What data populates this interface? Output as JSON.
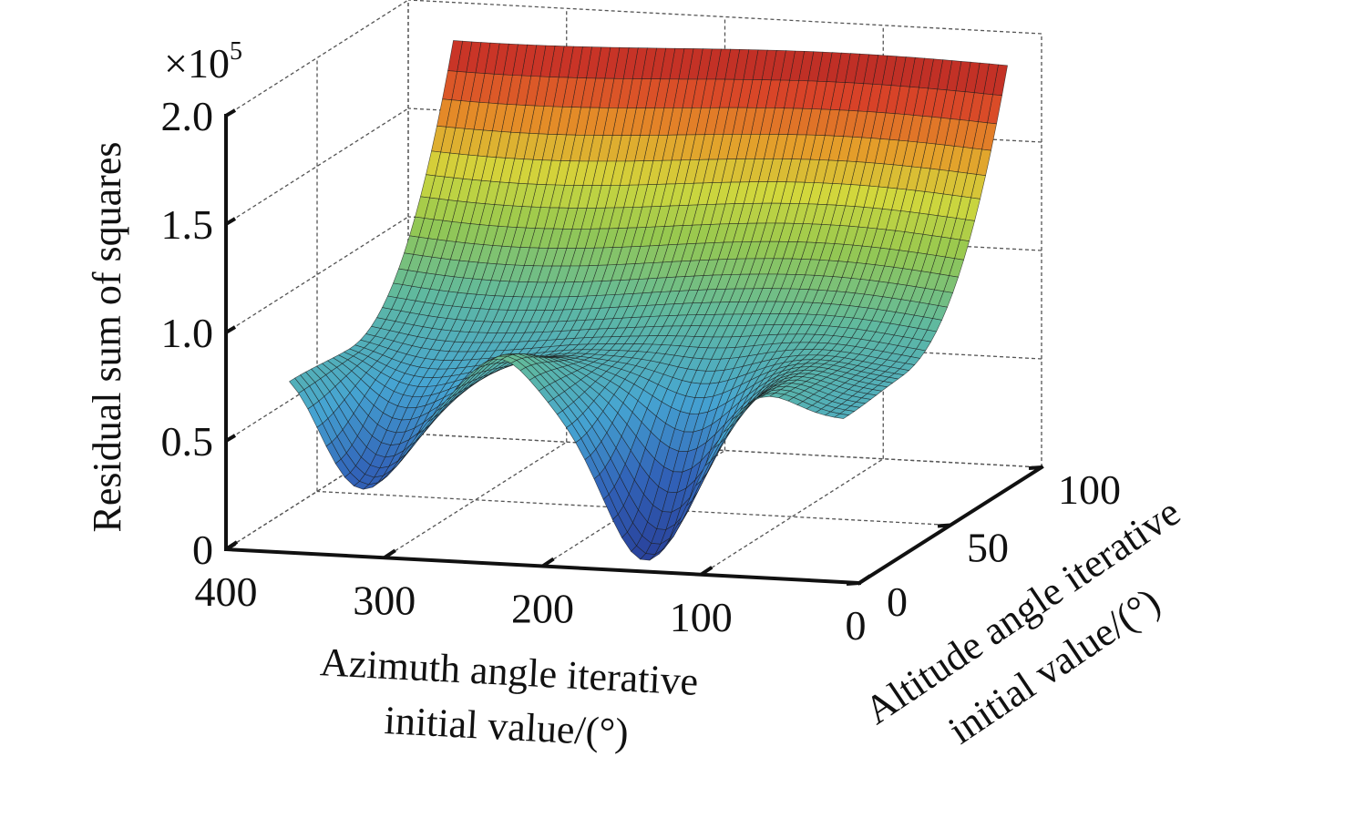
{
  "chart_data": {
    "type": "surface",
    "title": "",
    "xlabel": [
      "Azimuth angle iterative",
      "initial value/(°)"
    ],
    "ylabel": [
      "Altitude angle iterative",
      "initial value/(°)"
    ],
    "zlabel": "Residual sum of squares",
    "z_multiplier_label": "×10",
    "z_multiplier_exponent": "5",
    "xlim": [
      0,
      400
    ],
    "ylim": [
      0,
      100
    ],
    "zlim": [
      0,
      2.0
    ],
    "x_ticks": [
      {
        "value": 400,
        "label": "400"
      },
      {
        "value": 300,
        "label": "300"
      },
      {
        "value": 200,
        "label": "200"
      },
      {
        "value": 100,
        "label": "100"
      },
      {
        "value": 0,
        "label": "0"
      }
    ],
    "y_ticks": [
      {
        "value": 0,
        "label": "0"
      },
      {
        "value": 50,
        "label": "50"
      },
      {
        "value": 100,
        "label": "100"
      }
    ],
    "z_ticks": [
      {
        "value": 0,
        "label": "0"
      },
      {
        "value": 0.5,
        "label": "0.5"
      },
      {
        "value": 1.0,
        "label": "1.0"
      },
      {
        "value": 1.5,
        "label": "1.5"
      },
      {
        "value": 2.0,
        "label": "2.0"
      }
    ],
    "grid": true,
    "colormap": "jet",
    "surface_domain": {
      "x": [
        10,
        360
      ],
      "y": [
        0,
        90
      ]
    },
    "surface_features": {
      "back_ridge_value": 1.9,
      "valleys": [
        {
          "x": 315,
          "y": 0,
          "z": 0.3
        },
        {
          "x": 135,
          "y": 0,
          "z": 0.05
        }
      ],
      "front_peaks": [
        {
          "x": 360,
          "y": 0,
          "z": 0.9
        },
        {
          "x": 228,
          "y": 0,
          "z": 0.95
        },
        {
          "x": 60,
          "y": 0,
          "z": 0.85
        }
      ]
    }
  }
}
